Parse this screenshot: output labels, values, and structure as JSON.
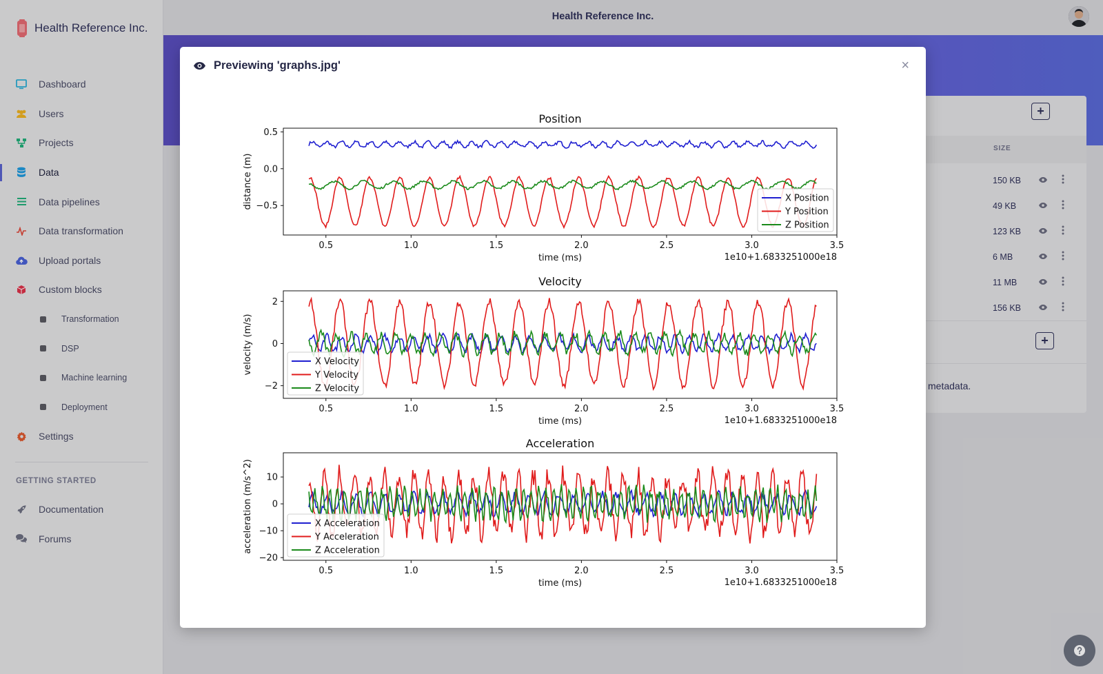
{
  "app": {
    "brand_name": "Health Reference Inc.",
    "top_title": "Health Reference Inc."
  },
  "sidebar": {
    "items": [
      {
        "label": "Dashboard",
        "icon": "monitor-icon",
        "color": "#2bb0d8"
      },
      {
        "label": "Users",
        "icon": "users-icon",
        "color": "#f0b323"
      },
      {
        "label": "Projects",
        "icon": "project-tree-icon",
        "color": "#22b07a"
      },
      {
        "label": "Data",
        "icon": "database-icon",
        "color": "#1f9be0"
      },
      {
        "label": "Data pipelines",
        "icon": "list-icon",
        "color": "#22b07a"
      },
      {
        "label": "Data transformation",
        "icon": "pulse-icon",
        "color": "#e0473a"
      },
      {
        "label": "Upload portals",
        "icon": "cloud-upload-icon",
        "color": "#4a62d8"
      },
      {
        "label": "Custom blocks",
        "icon": "cube-icon",
        "color": "#e0334b"
      }
    ],
    "sub_items": [
      "Transformation",
      "DSP",
      "Machine learning",
      "Deployment"
    ],
    "settings": {
      "label": "Settings",
      "icon": "gear-icon",
      "color": "#e05a30"
    },
    "section_title": "GETTING STARTED",
    "getting_started": [
      {
        "label": "Documentation",
        "icon": "rocket-icon"
      },
      {
        "label": "Forums",
        "icon": "comments-icon"
      }
    ]
  },
  "background_card": {
    "size_header": "SIZE",
    "rows": [
      "150 KB",
      "49 KB",
      "123 KB",
      "6 MB",
      "11 MB",
      "156 KB"
    ],
    "metadata_text": "metadata."
  },
  "modal": {
    "title": "Previewing 'graphs.jpg'",
    "close": "×"
  },
  "chart_data": [
    {
      "type": "line",
      "title": "Position",
      "xlabel": "time (ms)",
      "ylabel": "distance (m)",
      "offset_label": "1e10+1.6833251000e18",
      "xlim": [
        0.25,
        3.5
      ],
      "ylim": [
        -0.9,
        0.55
      ],
      "xticks": [
        0.5,
        1.0,
        1.5,
        2.0,
        2.5,
        3.0,
        3.5
      ],
      "xtick_labels": [
        "0.5",
        "1.0",
        "1.5",
        "2.0",
        "2.5",
        "3.0",
        "3.5"
      ],
      "yticks": [
        0.5,
        0.0,
        -0.5
      ],
      "ytick_labels": [
        "0.5",
        "0.0",
        "−0.5"
      ],
      "legend_position": "lower-right",
      "series": [
        {
          "name": "X Position",
          "color": "#1f1fd0",
          "x_range": [
            0.4,
            3.38
          ],
          "kind": "sine",
          "base": 0.33,
          "amp": 0.035,
          "cycles": 35,
          "noise": 0.02
        },
        {
          "name": "Y Position",
          "color": "#e01b1b",
          "x_range": [
            0.4,
            3.38
          ],
          "kind": "sine",
          "base": -0.45,
          "amp": 0.33,
          "cycles": 17,
          "noise": 0.02
        },
        {
          "name": "Z Position",
          "color": "#1a8a1a",
          "x_range": [
            0.4,
            3.38
          ],
          "kind": "sine",
          "base": -0.22,
          "amp": 0.05,
          "cycles": 17,
          "noise": 0.015
        }
      ]
    },
    {
      "type": "line",
      "title": "Velocity",
      "xlabel": "time (ms)",
      "ylabel": "velocity (m/s)",
      "offset_label": "1e10+1.6833251000e18",
      "xlim": [
        0.25,
        3.5
      ],
      "ylim": [
        -2.6,
        2.5
      ],
      "xticks": [
        0.5,
        1.0,
        1.5,
        2.0,
        2.5,
        3.0,
        3.5
      ],
      "xtick_labels": [
        "0.5",
        "1.0",
        "1.5",
        "2.0",
        "2.5",
        "3.0",
        "3.5"
      ],
      "yticks": [
        2,
        0,
        -2
      ],
      "ytick_labels": [
        "2",
        "0",
        "−2"
      ],
      "legend_position": "lower-left",
      "series": [
        {
          "name": "X Velocity",
          "color": "#1f1fd0",
          "x_range": [
            0.4,
            3.38
          ],
          "kind": "sine",
          "base": 0,
          "amp": 0.35,
          "cycles": 35,
          "noise": 0.15
        },
        {
          "name": "Y Velocity",
          "color": "#e01b1b",
          "x_range": [
            0.4,
            3.38
          ],
          "kind": "sine",
          "base": 0,
          "amp": 2.0,
          "cycles": 17,
          "noise": 0.2
        },
        {
          "name": "Z Velocity",
          "color": "#1a8a1a",
          "x_range": [
            0.4,
            3.38
          ],
          "kind": "sine",
          "base": 0,
          "amp": 0.45,
          "cycles": 34,
          "noise": 0.2
        }
      ]
    },
    {
      "type": "line",
      "title": "Acceleration",
      "xlabel": "time (ms)",
      "ylabel": "acceleration (m/s^2)",
      "offset_label": "1e10+1.6833251000e18",
      "xlim": [
        0.25,
        3.5
      ],
      "ylim": [
        -21,
        19
      ],
      "xticks": [
        0.5,
        1.0,
        1.5,
        2.0,
        2.5,
        3.0,
        3.5
      ],
      "xtick_labels": [
        "0.5",
        "1.0",
        "1.5",
        "2.0",
        "2.5",
        "3.0",
        "3.5"
      ],
      "yticks": [
        10,
        0,
        -10,
        -20
      ],
      "ytick_labels": [
        "10",
        "0",
        "−10",
        "−20"
      ],
      "legend_position": "lower-left",
      "series": [
        {
          "name": "X Acceleration",
          "color": "#1f1fd0",
          "x_range": [
            0.4,
            3.38
          ],
          "kind": "sine",
          "base": 0,
          "amp": 3.5,
          "cycles": 35,
          "noise": 1.5
        },
        {
          "name": "Y Acceleration",
          "color": "#e01b1b",
          "x_range": [
            0.4,
            3.38
          ],
          "kind": "sine",
          "base": 0,
          "amp": 11,
          "cycles": 34,
          "noise": 4
        },
        {
          "name": "Z Acceleration",
          "color": "#1a8a1a",
          "x_range": [
            0.4,
            3.38
          ],
          "kind": "sine",
          "base": 0,
          "amp": 5,
          "cycles": 68,
          "noise": 2.5
        }
      ]
    }
  ]
}
